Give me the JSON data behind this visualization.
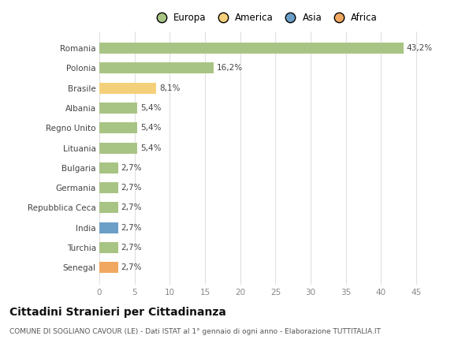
{
  "categories": [
    "Romania",
    "Polonia",
    "Brasile",
    "Albania",
    "Regno Unito",
    "Lituania",
    "Bulgaria",
    "Germania",
    "Repubblica Ceca",
    "India",
    "Turchia",
    "Senegal"
  ],
  "values": [
    43.2,
    16.2,
    8.1,
    5.4,
    5.4,
    5.4,
    2.7,
    2.7,
    2.7,
    2.7,
    2.7,
    2.7
  ],
  "labels": [
    "43,2%",
    "16,2%",
    "8,1%",
    "5,4%",
    "5,4%",
    "5,4%",
    "2,7%",
    "2,7%",
    "2,7%",
    "2,7%",
    "2,7%",
    "2,7%"
  ],
  "bar_colors": [
    "#a8c484",
    "#a8c484",
    "#f5d07a",
    "#a8c484",
    "#a8c484",
    "#a8c484",
    "#a8c484",
    "#a8c484",
    "#a8c484",
    "#6b9fc8",
    "#a8c484",
    "#f0a860"
  ],
  "legend_labels": [
    "Europa",
    "America",
    "Asia",
    "Africa"
  ],
  "legend_colors": [
    "#a8c484",
    "#f5d07a",
    "#6b9fc8",
    "#f0a860"
  ],
  "title": "Cittadini Stranieri per Cittadinanza",
  "subtitle": "COMUNE DI SOGLIANO CAVOUR (LE) - Dati ISTAT al 1° gennaio di ogni anno - Elaborazione TUTTITALIA.IT",
  "xlim": [
    0,
    47
  ],
  "xticks": [
    0,
    5,
    10,
    15,
    20,
    25,
    30,
    35,
    40,
    45
  ],
  "background_color": "#ffffff",
  "grid_color": "#e0e0e0"
}
